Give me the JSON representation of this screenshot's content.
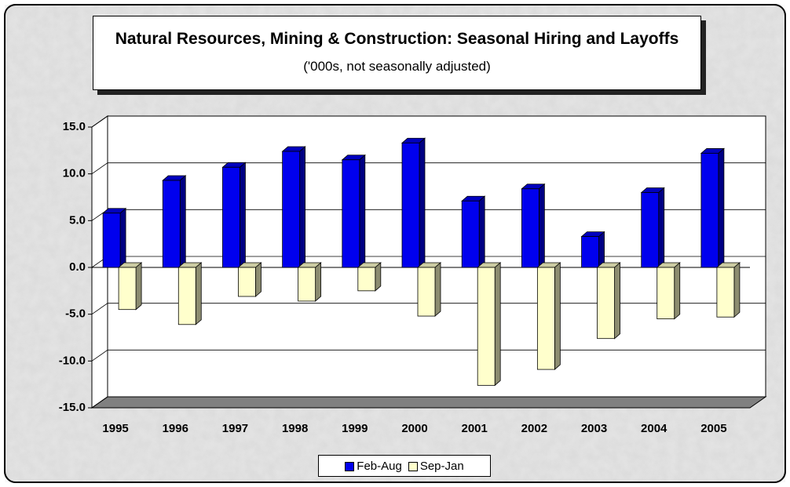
{
  "chart_data": {
    "type": "bar3d",
    "title": "Natural Resources, Mining & Construction: Seasonal Hiring and Layoffs",
    "subtitle": "('000s, not seasonally adjusted)",
    "categories": [
      "1995",
      "1996",
      "1997",
      "1998",
      "1999",
      "2000",
      "2001",
      "2002",
      "2003",
      "2004",
      "2005"
    ],
    "series": [
      {
        "name": "Feb-Aug",
        "color": "#0000ee",
        "values": [
          5.8,
          9.3,
          10.7,
          12.4,
          11.5,
          13.3,
          7.1,
          8.4,
          3.3,
          8.0,
          12.2
        ]
      },
      {
        "name": "Sep-Jan",
        "color": "#ffffcc",
        "values": [
          -4.5,
          -6.1,
          -3.1,
          -3.6,
          -2.5,
          -5.2,
          -12.6,
          -10.9,
          -7.6,
          -5.5,
          -5.3
        ]
      }
    ],
    "ylim": [
      -15,
      15
    ],
    "yticks": [
      {
        "value": -15,
        "label": "-15.0"
      },
      {
        "value": -10,
        "label": "-10.0"
      },
      {
        "value": -5,
        "label": "-5.0"
      },
      {
        "value": 0,
        "label": "0.0"
      },
      {
        "value": 5,
        "label": "5.0"
      },
      {
        "value": 10,
        "label": "10.0"
      },
      {
        "value": 15,
        "label": "15.0"
      }
    ],
    "grid": true,
    "legend": "bottom"
  }
}
